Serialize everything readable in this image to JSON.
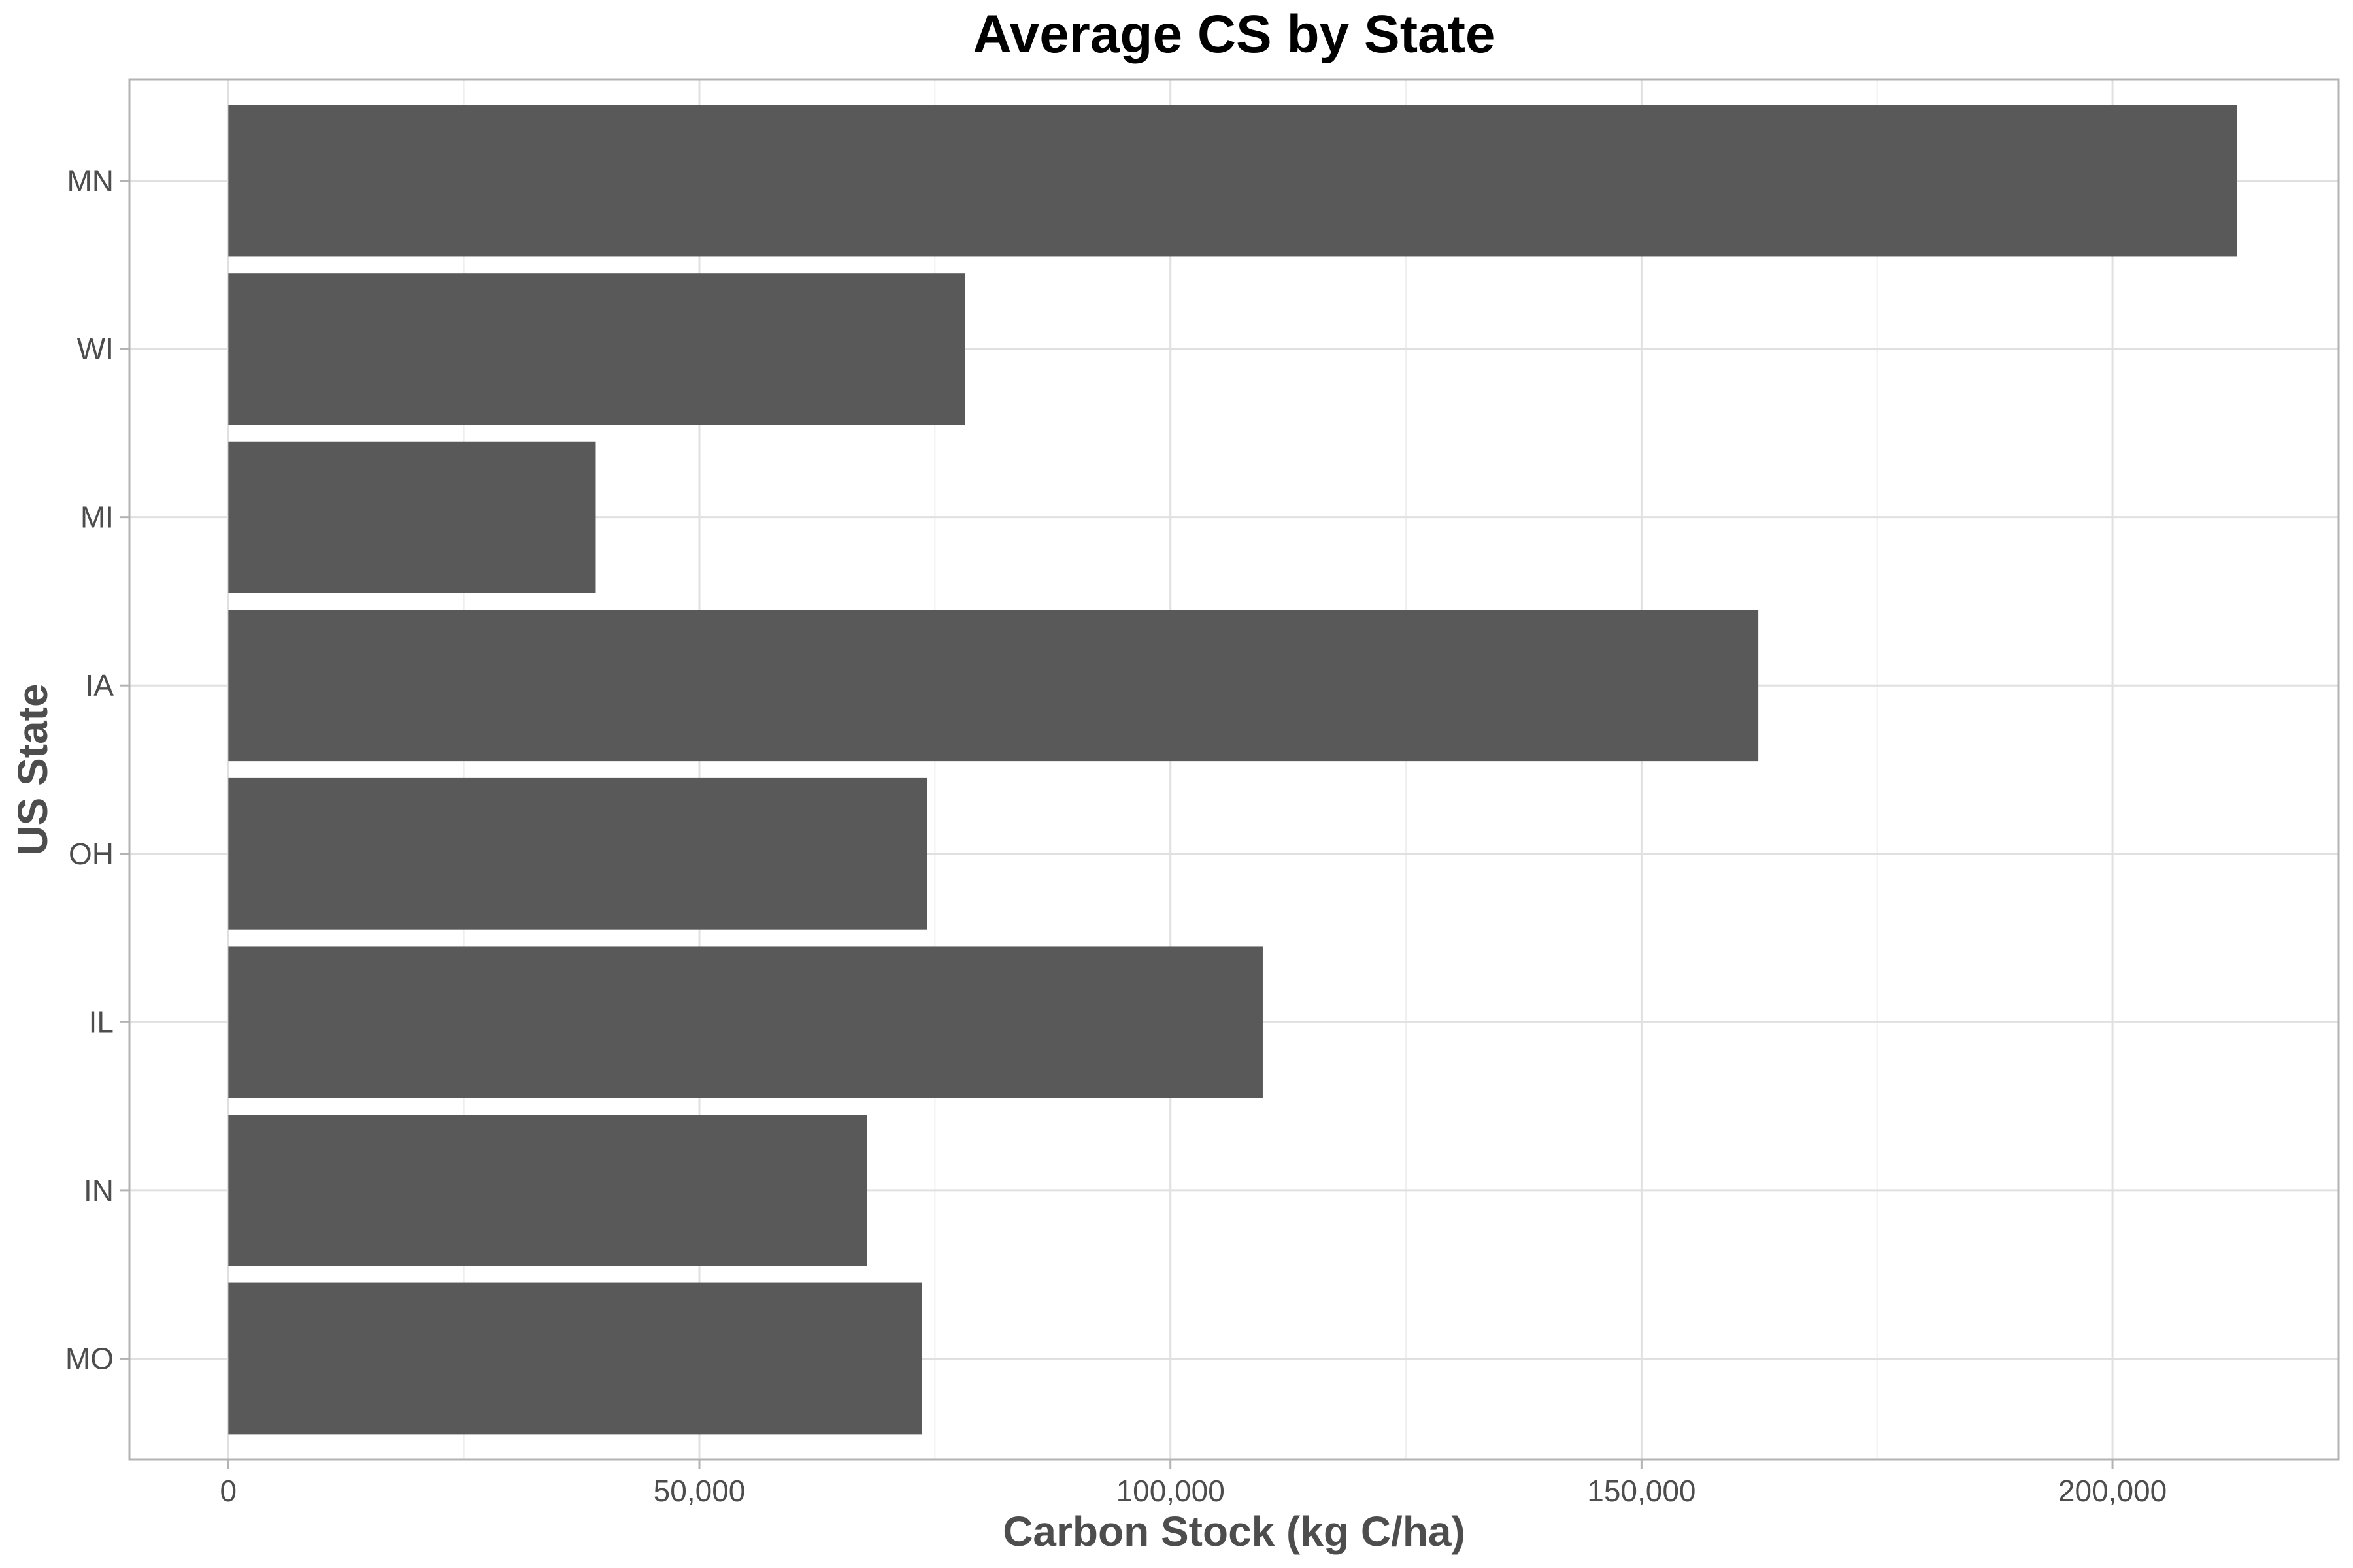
{
  "chart_data": {
    "type": "bar",
    "orientation": "horizontal",
    "title": "Average CS by State",
    "xlabel": "Carbon Stock (kg C/ha)",
    "ylabel": "US State",
    "categories": [
      "MN",
      "WI",
      "MI",
      "IA",
      "OH",
      "IL",
      "IN",
      "MO"
    ],
    "values": [
      213200,
      78200,
      39000,
      162400,
      74200,
      109800,
      67800,
      73600
    ],
    "xlim": [
      -10500,
      224000
    ],
    "x_ticks": [
      0,
      50000,
      100000,
      150000,
      200000
    ],
    "x_tick_labels": [
      "0",
      "50,000",
      "100,000",
      "150,000",
      "200,000"
    ],
    "grid": true,
    "legend": "none",
    "colors": {
      "bar": "#595959",
      "grid_major": "#e0e0e0",
      "grid_minor": "#efefef",
      "panel_border": "#b3b3b3",
      "tick_text": "#4d4d4d",
      "title_text": "#000000"
    }
  }
}
